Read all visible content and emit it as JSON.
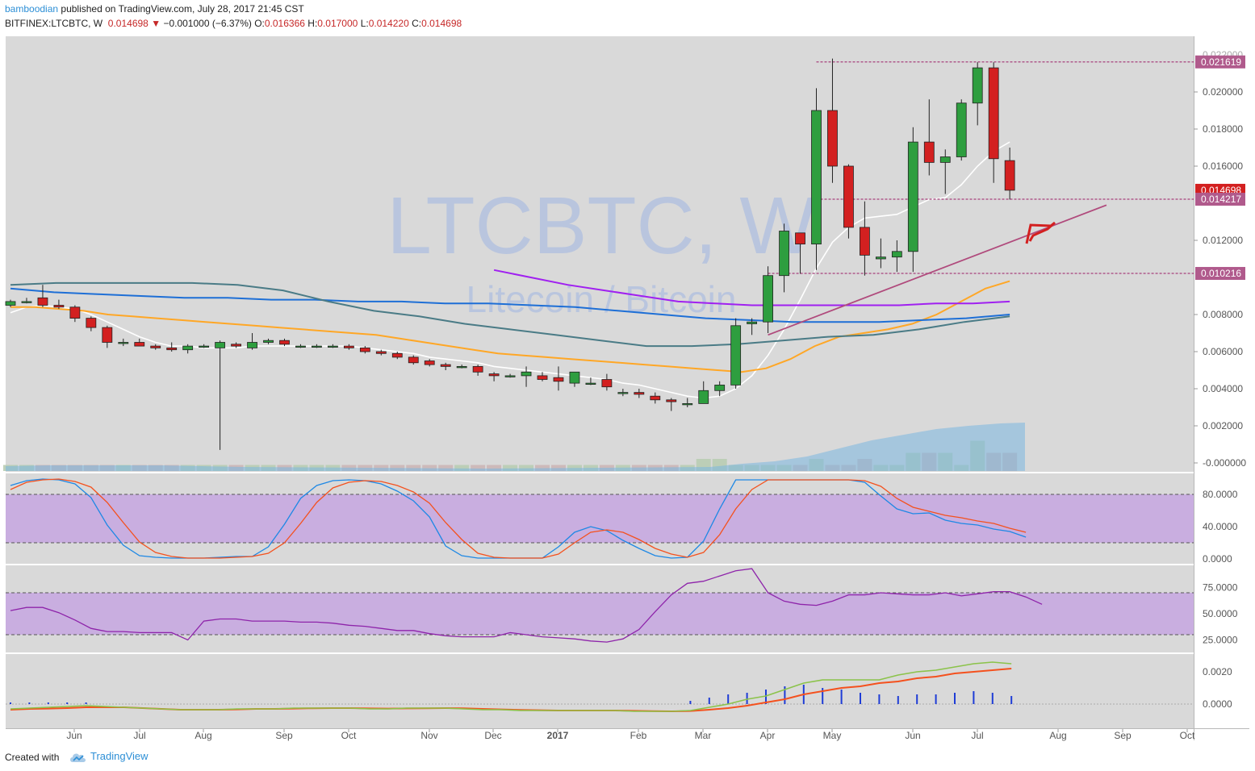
{
  "header": {
    "author": "bamboodian",
    "published_text": "published on TradingView.com, July 28, 2017 21:45 CST",
    "symbol": "BITFINEX:LTCBTC, W",
    "last": "0.014698",
    "change": "−0.001000 (−6.37%)",
    "o_label": "O:",
    "o_value": "0.016366",
    "h_label": "H:",
    "h_value": "0.017000",
    "l_label": "L:",
    "l_value": "0.014220",
    "c_label": "C:",
    "c_value": "0.014698"
  },
  "watermark": {
    "symbol": "LTCBTC, W",
    "name": "Litecoin / Bitcoin"
  },
  "footer": {
    "created_with": "Created with",
    "brand": "TradingView"
  },
  "colors": {
    "up": "#2e9e3f",
    "down": "#d32020",
    "ma_white": "#ffffff",
    "ma_orange": "#ffa726",
    "ma_purple": "#a020f0",
    "ma_blue": "#1e6fd6",
    "ma_teal": "#4a7b86",
    "band": "#c9aee0",
    "hline": "#b05a8c",
    "trend": "#b04a7c",
    "vol_up": "#b8ccb2",
    "vol_down": "#cbb6b6",
    "vol_ma": "#7ab6e0"
  },
  "chart_data": {
    "type": "candlestick",
    "timeframe": "W",
    "x_ticks": [
      "Jun",
      "Jul",
      "Aug",
      "Sep",
      "Oct",
      "Nov",
      "Dec",
      "2017",
      "Feb",
      "Mar",
      "Apr",
      "May",
      "Jun",
      "Jul",
      "Aug",
      "Sep",
      "Oct"
    ],
    "price_axis": {
      "ticks": [
        "0.020000",
        "0.018000",
        "0.016000",
        "0.012000",
        "0.008000",
        "0.006000",
        "0.004000",
        "0.002000",
        "-0.000000"
      ],
      "tick_values": [
        0.02,
        0.018,
        0.016,
        0.012,
        0.008,
        0.006,
        0.004,
        0.002,
        0
      ],
      "partial_top_tick": "0.022000",
      "range": [
        -0.0003,
        0.0237
      ]
    },
    "price_labels": [
      {
        "text": "0.021619",
        "value": 0.021619,
        "style": "hline"
      },
      {
        "text": "0.014698",
        "value": 0.014698,
        "style": "last"
      },
      {
        "text": "0.014217",
        "value": 0.014217,
        "style": "hline"
      },
      {
        "text": "0.010216",
        "value": 0.010216,
        "style": "hline"
      }
    ],
    "horizontal_lines": [
      {
        "value": 0.021619,
        "from_bar": 50,
        "to_bar": 72
      },
      {
        "value": 0.014217,
        "from_bar": 50,
        "to_bar": 72
      },
      {
        "value": 0.010216,
        "from_bar": 47,
        "to_bar": 72
      }
    ],
    "trendline": {
      "from": {
        "bar": 47,
        "value": 0.0069
      },
      "to": {
        "bar": 68,
        "value": 0.0139
      }
    },
    "candles": [
      [
        0.0085,
        0.0088,
        0.0084,
        0.0087
      ],
      [
        0.0087,
        0.0089,
        0.0086,
        0.0087
      ],
      [
        0.0089,
        0.0096,
        0.0084,
        0.0085
      ],
      [
        0.0085,
        0.0088,
        0.0083,
        0.0084
      ],
      [
        0.0084,
        0.0085,
        0.0076,
        0.0078
      ],
      [
        0.0078,
        0.0079,
        0.0071,
        0.0073
      ],
      [
        0.0073,
        0.0074,
        0.0062,
        0.0065
      ],
      [
        0.0065,
        0.0067,
        0.0063,
        0.0065
      ],
      [
        0.0065,
        0.0067,
        0.0063,
        0.0063
      ],
      [
        0.0063,
        0.0064,
        0.0061,
        0.0062
      ],
      [
        0.0062,
        0.0065,
        0.006,
        0.0061
      ],
      [
        0.0061,
        0.0064,
        0.0059,
        0.0063
      ],
      [
        0.0063,
        0.0064,
        0.0062,
        0.0063
      ],
      [
        0.0062,
        0.0066,
        0.0007,
        0.0065
      ],
      [
        0.0064,
        0.0065,
        0.0062,
        0.0063
      ],
      [
        0.0062,
        0.007,
        0.0061,
        0.0065
      ],
      [
        0.0065,
        0.0067,
        0.0064,
        0.0066
      ],
      [
        0.0066,
        0.0067,
        0.0063,
        0.0064
      ],
      [
        0.0063,
        0.0064,
        0.0062,
        0.0063
      ],
      [
        0.0063,
        0.0064,
        0.0062,
        0.0063
      ],
      [
        0.0063,
        0.0064,
        0.0062,
        0.0063
      ],
      [
        0.0063,
        0.0064,
        0.0061,
        0.0062
      ],
      [
        0.0062,
        0.0063,
        0.0059,
        0.006
      ],
      [
        0.006,
        0.0061,
        0.0058,
        0.0059
      ],
      [
        0.0059,
        0.006,
        0.0056,
        0.0057
      ],
      [
        0.0057,
        0.0058,
        0.0053,
        0.0054
      ],
      [
        0.0055,
        0.0056,
        0.0052,
        0.0053
      ],
      [
        0.0053,
        0.0054,
        0.005,
        0.0052
      ],
      [
        0.0052,
        0.0053,
        0.0051,
        0.0052
      ],
      [
        0.0052,
        0.0053,
        0.0047,
        0.0049
      ],
      [
        0.0048,
        0.0049,
        0.0044,
        0.0047
      ],
      [
        0.0047,
        0.0048,
        0.0046,
        0.0047
      ],
      [
        0.0047,
        0.0052,
        0.0041,
        0.0049
      ],
      [
        0.0047,
        0.0049,
        0.0044,
        0.0045
      ],
      [
        0.0046,
        0.0052,
        0.0039,
        0.0044
      ],
      [
        0.0043,
        0.0048,
        0.0041,
        0.0049
      ],
      [
        0.0043,
        0.0046,
        0.0042,
        0.0043
      ],
      [
        0.0045,
        0.0048,
        0.0039,
        0.0041
      ],
      [
        0.0038,
        0.004,
        0.0036,
        0.0038
      ],
      [
        0.0038,
        0.004,
        0.0035,
        0.0037
      ],
      [
        0.0036,
        0.0038,
        0.0032,
        0.0034
      ],
      [
        0.0034,
        0.0035,
        0.0028,
        0.0033
      ],
      [
        0.0032,
        0.0035,
        0.003,
        0.0032
      ],
      [
        0.0032,
        0.0044,
        0.0032,
        0.0039
      ],
      [
        0.0039,
        0.0044,
        0.0036,
        0.0042
      ],
      [
        0.0042,
        0.0078,
        0.004,
        0.0074
      ],
      [
        0.0075,
        0.0078,
        0.0069,
        0.0076
      ],
      [
        0.0076,
        0.0106,
        0.007,
        0.0101
      ],
      [
        0.0101,
        0.0129,
        0.0092,
        0.0125
      ],
      [
        0.0124,
        0.0124,
        0.0102,
        0.0118
      ],
      [
        0.0118,
        0.0202,
        0.0104,
        0.019
      ],
      [
        0.019,
        0.0218,
        0.0151,
        0.016
      ],
      [
        0.016,
        0.0161,
        0.0121,
        0.0127
      ],
      [
        0.0127,
        0.0141,
        0.0101,
        0.0112
      ],
      [
        0.011,
        0.0121,
        0.0105,
        0.0111
      ],
      [
        0.0111,
        0.012,
        0.0103,
        0.0114
      ],
      [
        0.0114,
        0.0181,
        0.0103,
        0.0173
      ],
      [
        0.0173,
        0.0196,
        0.0155,
        0.0162
      ],
      [
        0.0162,
        0.0169,
        0.0145,
        0.0165
      ],
      [
        0.0165,
        0.0196,
        0.0163,
        0.0194
      ],
      [
        0.0194,
        0.0216,
        0.0182,
        0.0213
      ],
      [
        0.0213,
        0.0216,
        0.0151,
        0.0164
      ],
      [
        0.0163,
        0.017,
        0.0142,
        0.0147
      ]
    ],
    "volume": [
      1,
      1,
      1,
      1,
      1,
      1,
      1,
      1,
      1,
      1,
      1,
      1,
      1,
      1,
      1,
      1,
      1,
      1,
      1,
      1,
      1,
      1,
      1,
      1,
      1,
      1,
      1,
      1,
      1,
      1,
      1,
      1,
      1,
      1,
      1,
      1,
      1,
      1,
      1,
      1,
      1,
      1,
      1,
      2,
      2,
      1,
      1,
      1,
      1,
      1,
      2,
      1,
      1,
      2,
      1,
      1,
      3,
      3,
      3,
      1,
      5,
      3,
      3,
      2,
      5,
      5,
      12,
      13,
      13,
      14,
      13,
      12,
      11,
      10,
      11,
      9,
      12,
      12,
      10,
      9,
      9,
      10,
      10,
      12,
      10,
      12,
      11,
      8,
      8,
      13,
      8,
      9,
      10
    ],
    "stoch": {
      "range": [
        0,
        100
      ],
      "ticks": [
        "80.0000",
        "40.0000",
        "0.0000"
      ],
      "tick_values": [
        80,
        40,
        0
      ],
      "band": [
        20,
        80
      ],
      "k": [
        91,
        97,
        99,
        98,
        93,
        76,
        42,
        17,
        4,
        2,
        1,
        1,
        1,
        2,
        3,
        3,
        15,
        43,
        75,
        91,
        97,
        98,
        97,
        93,
        84,
        72,
        52,
        16,
        4,
        1,
        1,
        1,
        1,
        1,
        15,
        33,
        40,
        35,
        23,
        13,
        4,
        1,
        2,
        22,
        62,
        98,
        98,
        98,
        98,
        98,
        98,
        98,
        98,
        95,
        78,
        62,
        56,
        57,
        48,
        44,
        42,
        37,
        34,
        27
      ],
      "d": [
        86,
        95,
        98,
        99,
        96,
        89,
        70,
        45,
        21,
        8,
        3,
        1,
        1,
        1,
        2,
        3,
        7,
        20,
        44,
        70,
        88,
        95,
        97,
        96,
        91,
        83,
        69,
        45,
        24,
        7,
        2,
        1,
        1,
        1,
        6,
        20,
        33,
        36,
        33,
        24,
        13,
        6,
        2,
        8,
        30,
        62,
        86,
        98,
        98,
        98,
        98,
        98,
        98,
        97,
        90,
        75,
        64,
        59,
        54,
        51,
        47,
        44,
        38,
        33
      ]
    },
    "rsi": {
      "range": [
        10,
        90
      ],
      "ticks": [
        "75.0000",
        "50.0000",
        "25.0000"
      ],
      "tick_values": [
        75,
        50,
        25
      ],
      "band": [
        30,
        70
      ],
      "values": [
        53,
        56,
        56,
        51,
        44,
        36,
        33,
        33,
        32,
        32,
        32,
        25,
        43,
        45,
        45,
        43,
        43,
        43,
        42,
        42,
        41,
        39,
        38,
        36,
        34,
        34,
        31,
        29,
        28,
        28,
        28,
        32,
        30,
        28,
        27,
        26,
        24,
        23,
        26,
        35,
        52,
        68,
        79,
        81,
        86,
        91,
        93,
        70,
        62,
        59,
        58,
        62,
        68,
        68,
        70,
        69,
        68,
        68,
        70,
        67,
        69,
        71,
        71,
        66,
        59
      ]
    },
    "macd": {
      "range": [
        -0.0005,
        0.0028
      ],
      "ticks": [
        "0.0020",
        "0.0000"
      ],
      "tick_values": [
        0.002,
        0
      ],
      "macd_line": [
        -0.0003,
        -0.00025,
        -0.0002,
        -0.00015,
        -0.0001,
        -0.00015,
        -0.0002,
        -0.00025,
        -0.0003,
        -0.00035,
        -0.00035,
        -0.00035,
        -0.0003,
        -0.0003,
        -0.0003,
        -0.00025,
        -0.00025,
        -0.00025,
        -0.00025,
        -0.0003,
        -0.0003,
        -0.00025,
        -0.00025,
        -0.00025,
        -0.0003,
        -0.00035,
        -0.00035,
        -0.0004,
        -0.0004,
        -0.0004,
        -0.0004,
        -0.0004,
        -0.0004,
        -0.00045,
        -0.00045,
        -0.00045,
        -0.0004,
        -0.0002,
        0.0,
        0.0003,
        0.0005,
        0.0009,
        0.0013,
        0.0015,
        0.0015,
        0.0015,
        0.0015,
        0.0018,
        0.002,
        0.0021,
        0.0023,
        0.0025,
        0.0026,
        0.0025
      ],
      "signal_line": [
        -0.00035,
        -0.0003,
        -0.00028,
        -0.00025,
        -0.0002,
        -0.0002,
        -0.0002,
        -0.00025,
        -0.0003,
        -0.00035,
        -0.00035,
        -0.00035,
        -0.00033,
        -0.0003,
        -0.0003,
        -0.00028,
        -0.00026,
        -0.00025,
        -0.00025,
        -0.00027,
        -0.00028,
        -0.00027,
        -0.00026,
        -0.00025,
        -0.00026,
        -0.0003,
        -0.00033,
        -0.00036,
        -0.00038,
        -0.0004,
        -0.0004,
        -0.0004,
        -0.0004,
        -0.00042,
        -0.00044,
        -0.00045,
        -0.00043,
        -0.00035,
        -0.00025,
        -0.0001,
        0.0001,
        0.0003,
        0.0006,
        0.0008,
        0.001,
        0.0011,
        0.0013,
        0.0014,
        0.0016,
        0.0017,
        0.0019,
        0.002,
        0.0021,
        0.0022
      ],
      "histogram": [
        0.0001,
        0.0001,
        0.0001,
        0.0001,
        0.0001,
        0.0,
        0.0,
        0.0,
        0.0,
        0.0,
        0.0,
        0.0,
        0.0,
        0.0,
        0.0,
        0.0,
        0.0,
        0.0,
        0.0,
        0.0,
        0.0,
        0.0,
        0.0,
        0.0,
        0.0,
        0.0,
        0.0,
        0.0,
        0.0,
        0.0,
        0.0,
        0.0,
        0.0,
        0.0,
        0.0,
        0.0,
        0.0002,
        0.0004,
        0.0006,
        0.0007,
        0.0009,
        0.0011,
        0.0012,
        0.001,
        0.0009,
        0.0007,
        0.0006,
        0.0005,
        0.0006,
        0.0006,
        0.0007,
        0.0008,
        0.0007,
        0.0005
      ]
    },
    "moving_averages": [
      {
        "color": "ma_white",
        "values": [
          0.0081,
          0.0084,
          0.0085,
          0.0084,
          0.0083,
          0.008,
          0.0076,
          0.0072,
          0.0068,
          0.0065,
          0.0063,
          0.0063,
          0.0062,
          0.0062,
          0.0062,
          0.0063,
          0.0063,
          0.0063,
          0.0063,
          0.0063,
          0.0063,
          0.0063,
          0.0062,
          0.0061,
          0.006,
          0.0059,
          0.0057,
          0.0056,
          0.0055,
          0.0054,
          0.0052,
          0.0051,
          0.005,
          0.0049,
          0.0048,
          0.0047,
          0.0046,
          0.0045,
          0.0043,
          0.0042,
          0.004,
          0.0038,
          0.0036,
          0.0035,
          0.0036,
          0.004,
          0.0047,
          0.0058,
          0.0072,
          0.0088,
          0.0105,
          0.0119,
          0.0127,
          0.0132,
          0.0133,
          0.0134,
          0.0138,
          0.0142,
          0.0143,
          0.015,
          0.016,
          0.0168,
          0.0173
        ]
      },
      {
        "color": "ma_orange",
        "values": [
          0.0084,
          0.0084,
          0.0083,
          0.0082,
          0.008,
          0.0079,
          0.0078,
          0.0077,
          0.0076,
          0.0075,
          0.0074,
          0.0073,
          0.0072,
          0.0071,
          0.007,
          0.0069,
          0.0067,
          0.0065,
          0.0063,
          0.0061,
          0.0059,
          0.0058,
          0.0057,
          0.0056,
          0.0055,
          0.0054,
          0.0053,
          0.0052,
          0.0051,
          0.005,
          0.0049,
          0.0051,
          0.0056,
          0.0063,
          0.0068,
          0.007,
          0.0072,
          0.0075,
          0.008,
          0.0087,
          0.0094,
          0.0098
        ]
      },
      {
        "color": "ma_purple",
        "from_bar": 30,
        "values": [
          0.0104,
          0.01,
          0.0096,
          0.0093,
          0.009,
          0.0087,
          0.0086,
          0.0085,
          0.0085,
          0.0085,
          0.0085,
          0.0085,
          0.0086,
          0.0086,
          0.0087
        ]
      },
      {
        "color": "ma_blue",
        "values": [
          0.0094,
          0.0092,
          0.0091,
          0.009,
          0.0089,
          0.0089,
          0.0088,
          0.0088,
          0.0087,
          0.0087,
          0.0086,
          0.0086,
          0.0085,
          0.0084,
          0.0082,
          0.008,
          0.0078,
          0.0077,
          0.0076,
          0.0076,
          0.0076,
          0.0077,
          0.0078,
          0.008
        ]
      },
      {
        "color": "ma_teal",
        "values": [
          0.0096,
          0.0097,
          0.0097,
          0.0097,
          0.0097,
          0.0096,
          0.0093,
          0.0087,
          0.0082,
          0.0079,
          0.0075,
          0.0072,
          0.0069,
          0.0066,
          0.0063,
          0.0063,
          0.0064,
          0.0066,
          0.0068,
          0.0069,
          0.0072,
          0.0076,
          0.0079
        ]
      }
    ]
  }
}
